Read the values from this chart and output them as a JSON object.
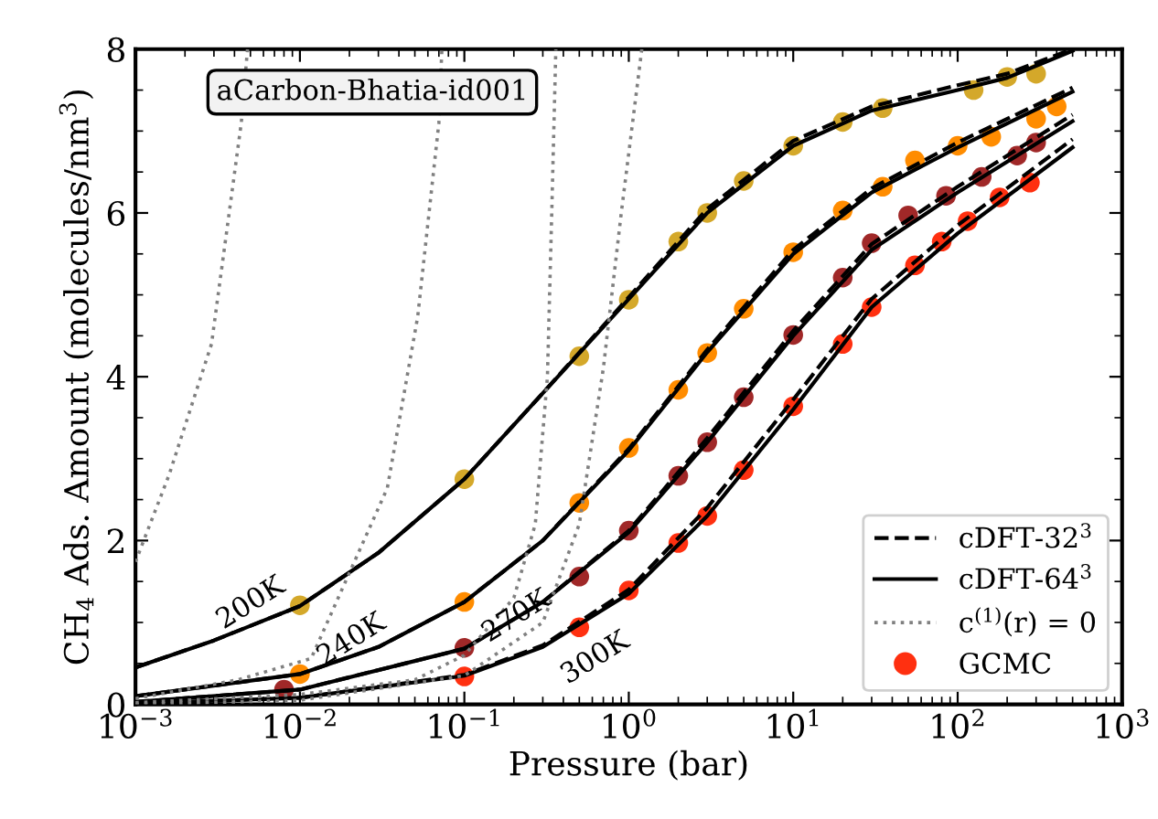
{
  "chart_data": {
    "type": "line",
    "xlabel": "Pressure (bar)",
    "ylabel": "CH$_{4}$ Ads. Amount (molecules/nm$^{3}$)",
    "log": "x",
    "xlim": [
      0.001,
      1000
    ],
    "ylim": [
      0,
      8
    ],
    "xticks": [
      {
        "value": 0.001,
        "label": "10$^{−3}$"
      },
      {
        "value": 0.01,
        "label": "10$^{−2}$"
      },
      {
        "value": 0.1,
        "label": "10$^{−1}$"
      },
      {
        "value": 1,
        "label": "10$^{0}$"
      },
      {
        "value": 10,
        "label": "10$^{1}$"
      },
      {
        "value": 100,
        "label": "10$^{2}$"
      },
      {
        "value": 1000,
        "label": "10$^{3}$"
      }
    ],
    "yticks": [
      0,
      2,
      4,
      6,
      8
    ],
    "grid": false,
    "legend": "bottom right",
    "annotations": [
      "aCarbon-Bhatia-id001",
      "200K",
      "240K",
      "270K",
      "300K"
    ],
    "series": [
      {
        "name": "cDFT-32$^{3}$",
        "line_style": "dashed",
        "color": "#000000",
        "x": [
          0.001,
          0.003,
          0.01,
          0.03,
          0.1,
          0.3,
          1,
          3,
          10,
          30,
          100,
          200,
          500
        ],
        "values": [
          0.45,
          0.78,
          1.2,
          1.85,
          2.75,
          3.8,
          4.97,
          6.05,
          6.88,
          7.3,
          7.56,
          7.7,
          8.0
        ]
      },
      {
        "line_style": "dashed",
        "color": "#000000",
        "x": [
          0.001,
          0.01,
          0.03,
          0.1,
          0.3,
          1,
          3,
          10,
          30,
          100,
          500
        ],
        "values": [
          0.1,
          0.37,
          0.7,
          1.25,
          2.0,
          3.12,
          4.33,
          5.55,
          6.3,
          6.86,
          7.53
        ]
      },
      {
        "line_style": "dashed",
        "color": "#000000",
        "x": [
          0.001,
          0.01,
          0.1,
          0.3,
          1,
          3,
          10,
          30,
          100,
          500
        ],
        "values": [
          0.03,
          0.18,
          0.68,
          1.25,
          2.12,
          3.25,
          4.56,
          5.62,
          6.32,
          7.2
        ]
      },
      {
        "line_style": "dashed",
        "color": "#000000",
        "x": [
          0.001,
          0.01,
          0.1,
          0.3,
          1,
          3,
          10,
          30,
          100,
          500
        ],
        "values": [
          0.01,
          0.08,
          0.36,
          0.72,
          1.4,
          2.4,
          3.72,
          4.95,
          5.85,
          6.9
        ]
      },
      {
        "name": "cDFT-64$^{3}$",
        "line_style": "solid",
        "color": "#000000",
        "x": [
          0.001,
          0.003,
          0.01,
          0.03,
          0.1,
          0.3,
          1,
          3,
          10,
          30,
          100,
          200,
          500
        ],
        "values": [
          0.45,
          0.78,
          1.2,
          1.85,
          2.75,
          3.8,
          4.95,
          6.0,
          6.82,
          7.25,
          7.5,
          7.65,
          7.98
        ]
      },
      {
        "line_style": "solid",
        "color": "#000000",
        "x": [
          0.001,
          0.01,
          0.03,
          0.1,
          0.3,
          1,
          3,
          10,
          30,
          100,
          500
        ],
        "values": [
          0.1,
          0.37,
          0.7,
          1.25,
          2.0,
          3.1,
          4.3,
          5.5,
          6.25,
          6.8,
          7.48
        ]
      },
      {
        "line_style": "solid",
        "color": "#000000",
        "x": [
          0.001,
          0.01,
          0.1,
          0.3,
          1,
          3,
          10,
          30,
          100,
          500
        ],
        "values": [
          0.03,
          0.18,
          0.68,
          1.25,
          2.1,
          3.2,
          4.5,
          5.55,
          6.25,
          7.12
        ]
      },
      {
        "line_style": "solid",
        "color": "#000000",
        "x": [
          0.001,
          0.01,
          0.1,
          0.3,
          1,
          3,
          10,
          30,
          100,
          500
        ],
        "values": [
          0.01,
          0.08,
          0.35,
          0.7,
          1.35,
          2.3,
          3.6,
          4.85,
          5.75,
          6.8
        ]
      },
      {
        "name": "c$^{(1)}$(r) = 0",
        "line_style": "dotted",
        "color": "#808080",
        "x": [
          0.001,
          0.0016,
          0.0029,
          0.0044,
          0.0048
        ],
        "values": [
          1.74,
          2.8,
          4.4,
          7.1,
          8.0
        ]
      },
      {
        "line_style": "dotted",
        "color": "#808080",
        "x": [
          0.001,
          0.0042,
          0.0117,
          0.034,
          0.052,
          0.07,
          0.073
        ],
        "values": [
          0.07,
          0.3,
          0.56,
          2.64,
          4.73,
          7.1,
          8.0
        ]
      },
      {
        "line_style": "dotted",
        "color": "#808080",
        "x": [
          0.001,
          0.01,
          0.05,
          0.1,
          0.2,
          0.27,
          0.32,
          0.34,
          0.36
        ],
        "values": [
          0.02,
          0.12,
          0.3,
          0.6,
          1.3,
          2.2,
          4.0,
          6.0,
          8.0
        ]
      },
      {
        "line_style": "dotted",
        "color": "#808080",
        "x": [
          0.001,
          0.01,
          0.1,
          0.3,
          0.5,
          0.7,
          0.9,
          1.2
        ],
        "values": [
          0.0,
          0.05,
          0.35,
          1.0,
          2.2,
          4.1,
          6.0,
          8.0
        ]
      },
      {
        "type": "scatter",
        "marker": "circle",
        "color": "#d4a82a",
        "x": [
          0.01,
          0.1,
          0.5,
          1,
          2,
          3,
          5,
          10,
          20,
          35,
          125,
          200,
          300
        ],
        "values": [
          1.21,
          2.75,
          4.25,
          4.94,
          5.65,
          6.0,
          6.39,
          6.82,
          7.11,
          7.28,
          7.5,
          7.66,
          7.7
        ]
      },
      {
        "type": "scatter",
        "marker": "circle",
        "color": "#ff8c00",
        "x": [
          0.01,
          0.1,
          0.5,
          1,
          2,
          3,
          5,
          10,
          20,
          35,
          55,
          100,
          160,
          300,
          400
        ],
        "values": [
          0.37,
          1.25,
          2.46,
          3.13,
          3.84,
          4.29,
          4.83,
          5.52,
          6.03,
          6.32,
          6.64,
          6.82,
          6.93,
          7.15,
          7.3
        ]
      },
      {
        "type": "scatter",
        "marker": "circle",
        "color": "#a02828",
        "x": [
          0.008,
          0.1,
          0.5,
          1,
          2,
          3,
          5,
          10,
          20,
          30,
          50,
          85,
          140,
          230,
          300
        ],
        "values": [
          0.18,
          0.69,
          1.56,
          2.12,
          2.79,
          3.2,
          3.75,
          4.51,
          5.21,
          5.63,
          5.97,
          6.21,
          6.44,
          6.7,
          6.86
        ]
      },
      {
        "name": "GCMC",
        "type": "scatter",
        "marker": "circle",
        "color": "#ff3010",
        "x": [
          0.1,
          0.5,
          1,
          2,
          3,
          5,
          10,
          20,
          30,
          55,
          80,
          115,
          180,
          275
        ],
        "values": [
          0.34,
          0.94,
          1.39,
          1.97,
          2.3,
          2.86,
          3.64,
          4.4,
          4.85,
          5.36,
          5.65,
          5.9,
          6.19,
          6.37
        ]
      }
    ]
  }
}
